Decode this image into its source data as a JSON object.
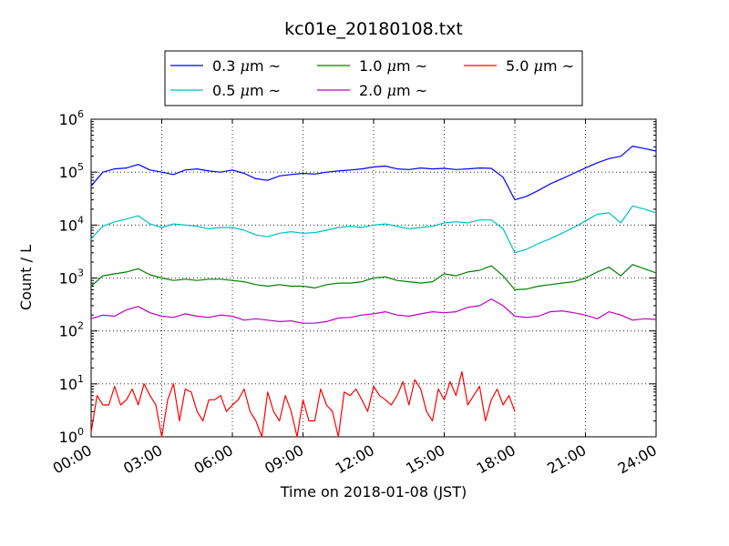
{
  "chart_data": {
    "type": "line",
    "title": "kc01e_20180108.txt",
    "xlabel": "Time on 2018-01-08 (JST)",
    "ylabel": "Count / L",
    "yscale": "log",
    "xlim_hours": [
      0,
      24
    ],
    "ylim": [
      1,
      1000000
    ],
    "x_ticks": [
      "00:00",
      "03:00",
      "06:00",
      "09:00",
      "12:00",
      "15:00",
      "18:00",
      "21:00",
      "24:00"
    ],
    "y_ticks": [
      {
        "base": "10",
        "exp": "0"
      },
      {
        "base": "10",
        "exp": "1"
      },
      {
        "base": "10",
        "exp": "2"
      },
      {
        "base": "10",
        "exp": "3"
      },
      {
        "base": "10",
        "exp": "4"
      },
      {
        "base": "10",
        "exp": "5"
      },
      {
        "base": "10",
        "exp": "6"
      }
    ],
    "grid": true,
    "legend_position": "top",
    "series": [
      {
        "name": "0.3 μm ~",
        "size": "0.3",
        "color": "#0000ff",
        "x": [
          0,
          0.5,
          1,
          1.5,
          2,
          2.5,
          3,
          3.5,
          4,
          4.5,
          5,
          5.5,
          6,
          6.5,
          7,
          7.5,
          8,
          8.5,
          9,
          9.5,
          10,
          10.5,
          11,
          11.5,
          12,
          12.5,
          13,
          13.5,
          14,
          14.5,
          15,
          15.5,
          16,
          16.5,
          17,
          17.5,
          18,
          18.5,
          19,
          19.5,
          20,
          20.5,
          21,
          21.5,
          22,
          22.5,
          23,
          23.5,
          24
        ],
        "y": [
          55000,
          100000,
          115000,
          120000,
          140000,
          110000,
          100000,
          90000,
          110000,
          115000,
          105000,
          100000,
          110000,
          95000,
          75000,
          70000,
          85000,
          90000,
          95000,
          92000,
          100000,
          105000,
          110000,
          115000,
          125000,
          130000,
          115000,
          112000,
          120000,
          115000,
          118000,
          112000,
          115000,
          120000,
          118000,
          80000,
          30000,
          35000,
          45000,
          60000,
          75000,
          95000,
          120000,
          150000,
          180000,
          200000,
          310000,
          280000,
          250000
        ]
      },
      {
        "name": "0.5 μm ~",
        "size": "0.5",
        "color": "#00bfbf",
        "x": [
          0,
          0.5,
          1,
          1.5,
          2,
          2.5,
          3,
          3.5,
          4,
          4.5,
          5,
          5.5,
          6,
          6.5,
          7,
          7.5,
          8,
          8.5,
          9,
          9.5,
          10,
          10.5,
          11,
          11.5,
          12,
          12.5,
          13,
          13.5,
          14,
          14.5,
          15,
          15.5,
          16,
          16.5,
          17,
          17.5,
          18,
          18.5,
          19,
          19.5,
          20,
          20.5,
          21,
          21.5,
          22,
          22.5,
          23,
          23.5,
          24
        ],
        "y": [
          5500,
          9500,
          11500,
          13000,
          15000,
          10500,
          9000,
          10500,
          10000,
          9500,
          8500,
          9000,
          9000,
          8000,
          6500,
          6000,
          7000,
          7500,
          7000,
          7200,
          8000,
          9000,
          9500,
          9000,
          10000,
          10500,
          9500,
          8500,
          9000,
          9500,
          11000,
          11500,
          11000,
          12500,
          12500,
          8500,
          3000,
          3500,
          4500,
          5500,
          7000,
          9000,
          12000,
          16000,
          17000,
          11000,
          23000,
          20000,
          17000
        ]
      },
      {
        "name": "1.0 μm ~",
        "size": "1.0",
        "color": "#008000",
        "x": [
          0,
          0.5,
          1,
          1.5,
          2,
          2.5,
          3,
          3.5,
          4,
          4.5,
          5,
          5.5,
          6,
          6.5,
          7,
          7.5,
          8,
          8.5,
          9,
          9.5,
          10,
          10.5,
          11,
          11.5,
          12,
          12.5,
          13,
          13.5,
          14,
          14.5,
          15,
          15.5,
          16,
          16.5,
          17,
          17.5,
          18,
          18.5,
          19,
          19.5,
          20,
          20.5,
          21,
          21.5,
          22,
          22.5,
          23,
          23.5,
          24
        ],
        "y": [
          700,
          1100,
          1200,
          1300,
          1500,
          1150,
          1000,
          900,
          950,
          900,
          950,
          950,
          900,
          850,
          750,
          700,
          750,
          700,
          700,
          650,
          750,
          800,
          800,
          850,
          1000,
          1050,
          900,
          850,
          800,
          850,
          1200,
          1100,
          1300,
          1400,
          1700,
          1100,
          600,
          620,
          700,
          750,
          800,
          850,
          1000,
          1300,
          1600,
          1100,
          1800,
          1500,
          1250
        ]
      },
      {
        "name": "2.0 μm ~",
        "size": "2.0",
        "color": "#bf00bf",
        "x": [
          0,
          0.5,
          1,
          1.5,
          2,
          2.5,
          3,
          3.5,
          4,
          4.5,
          5,
          5.5,
          6,
          6.5,
          7,
          7.5,
          8,
          8.5,
          9,
          9.5,
          10,
          10.5,
          11,
          11.5,
          12,
          12.5,
          13,
          13.5,
          14,
          14.5,
          15,
          15.5,
          16,
          16.5,
          17,
          17.5,
          18,
          18.5,
          19,
          19.5,
          20,
          20.5,
          21,
          21.5,
          22,
          22.5,
          23,
          23.5,
          24
        ],
        "y": [
          170,
          200,
          190,
          250,
          290,
          220,
          190,
          180,
          210,
          190,
          180,
          200,
          190,
          160,
          170,
          160,
          150,
          155,
          140,
          140,
          150,
          175,
          180,
          200,
          210,
          230,
          200,
          190,
          210,
          230,
          220,
          230,
          280,
          300,
          400,
          300,
          190,
          180,
          190,
          230,
          240,
          220,
          200,
          170,
          230,
          200,
          160,
          170,
          165
        ]
      },
      {
        "name": "5.0 μm ~",
        "size": "5.0",
        "color": "#ff0000",
        "x": [
          0,
          0.25,
          0.5,
          0.75,
          1,
          1.25,
          1.5,
          1.75,
          2,
          2.25,
          2.5,
          2.75,
          3,
          3.25,
          3.5,
          3.75,
          4,
          4.25,
          4.5,
          4.75,
          5,
          5.25,
          5.5,
          5.75,
          6,
          6.25,
          6.5,
          6.75,
          7,
          7.25,
          7.5,
          7.75,
          8,
          8.25,
          8.5,
          8.75,
          9,
          9.25,
          9.5,
          9.75,
          10,
          10.25,
          10.5,
          10.75,
          11,
          11.25,
          11.5,
          11.75,
          12,
          12.25,
          12.5,
          12.75,
          13,
          13.25,
          13.5,
          13.75,
          14,
          14.25,
          14.5,
          14.75,
          15,
          15.25,
          15.5,
          15.75,
          16,
          16.25,
          16.5,
          16.75,
          17,
          17.25,
          17.5,
          17.75,
          18
        ],
        "y": [
          1.2,
          6,
          4,
          4,
          9,
          4,
          5,
          8,
          4,
          10,
          6,
          4,
          1,
          5,
          10,
          2,
          8,
          7,
          3,
          2,
          5,
          5,
          6,
          3,
          4,
          5,
          8,
          3,
          2,
          1,
          7,
          3,
          2,
          6,
          3,
          1,
          5,
          2,
          2,
          8,
          4,
          3,
          1,
          7,
          6,
          8,
          5,
          3,
          9,
          6,
          5,
          4,
          6,
          11,
          4,
          12,
          8,
          3,
          2,
          8,
          5,
          11,
          6,
          17,
          4,
          6,
          9,
          2,
          5,
          8,
          4,
          6,
          3
        ]
      }
    ]
  }
}
